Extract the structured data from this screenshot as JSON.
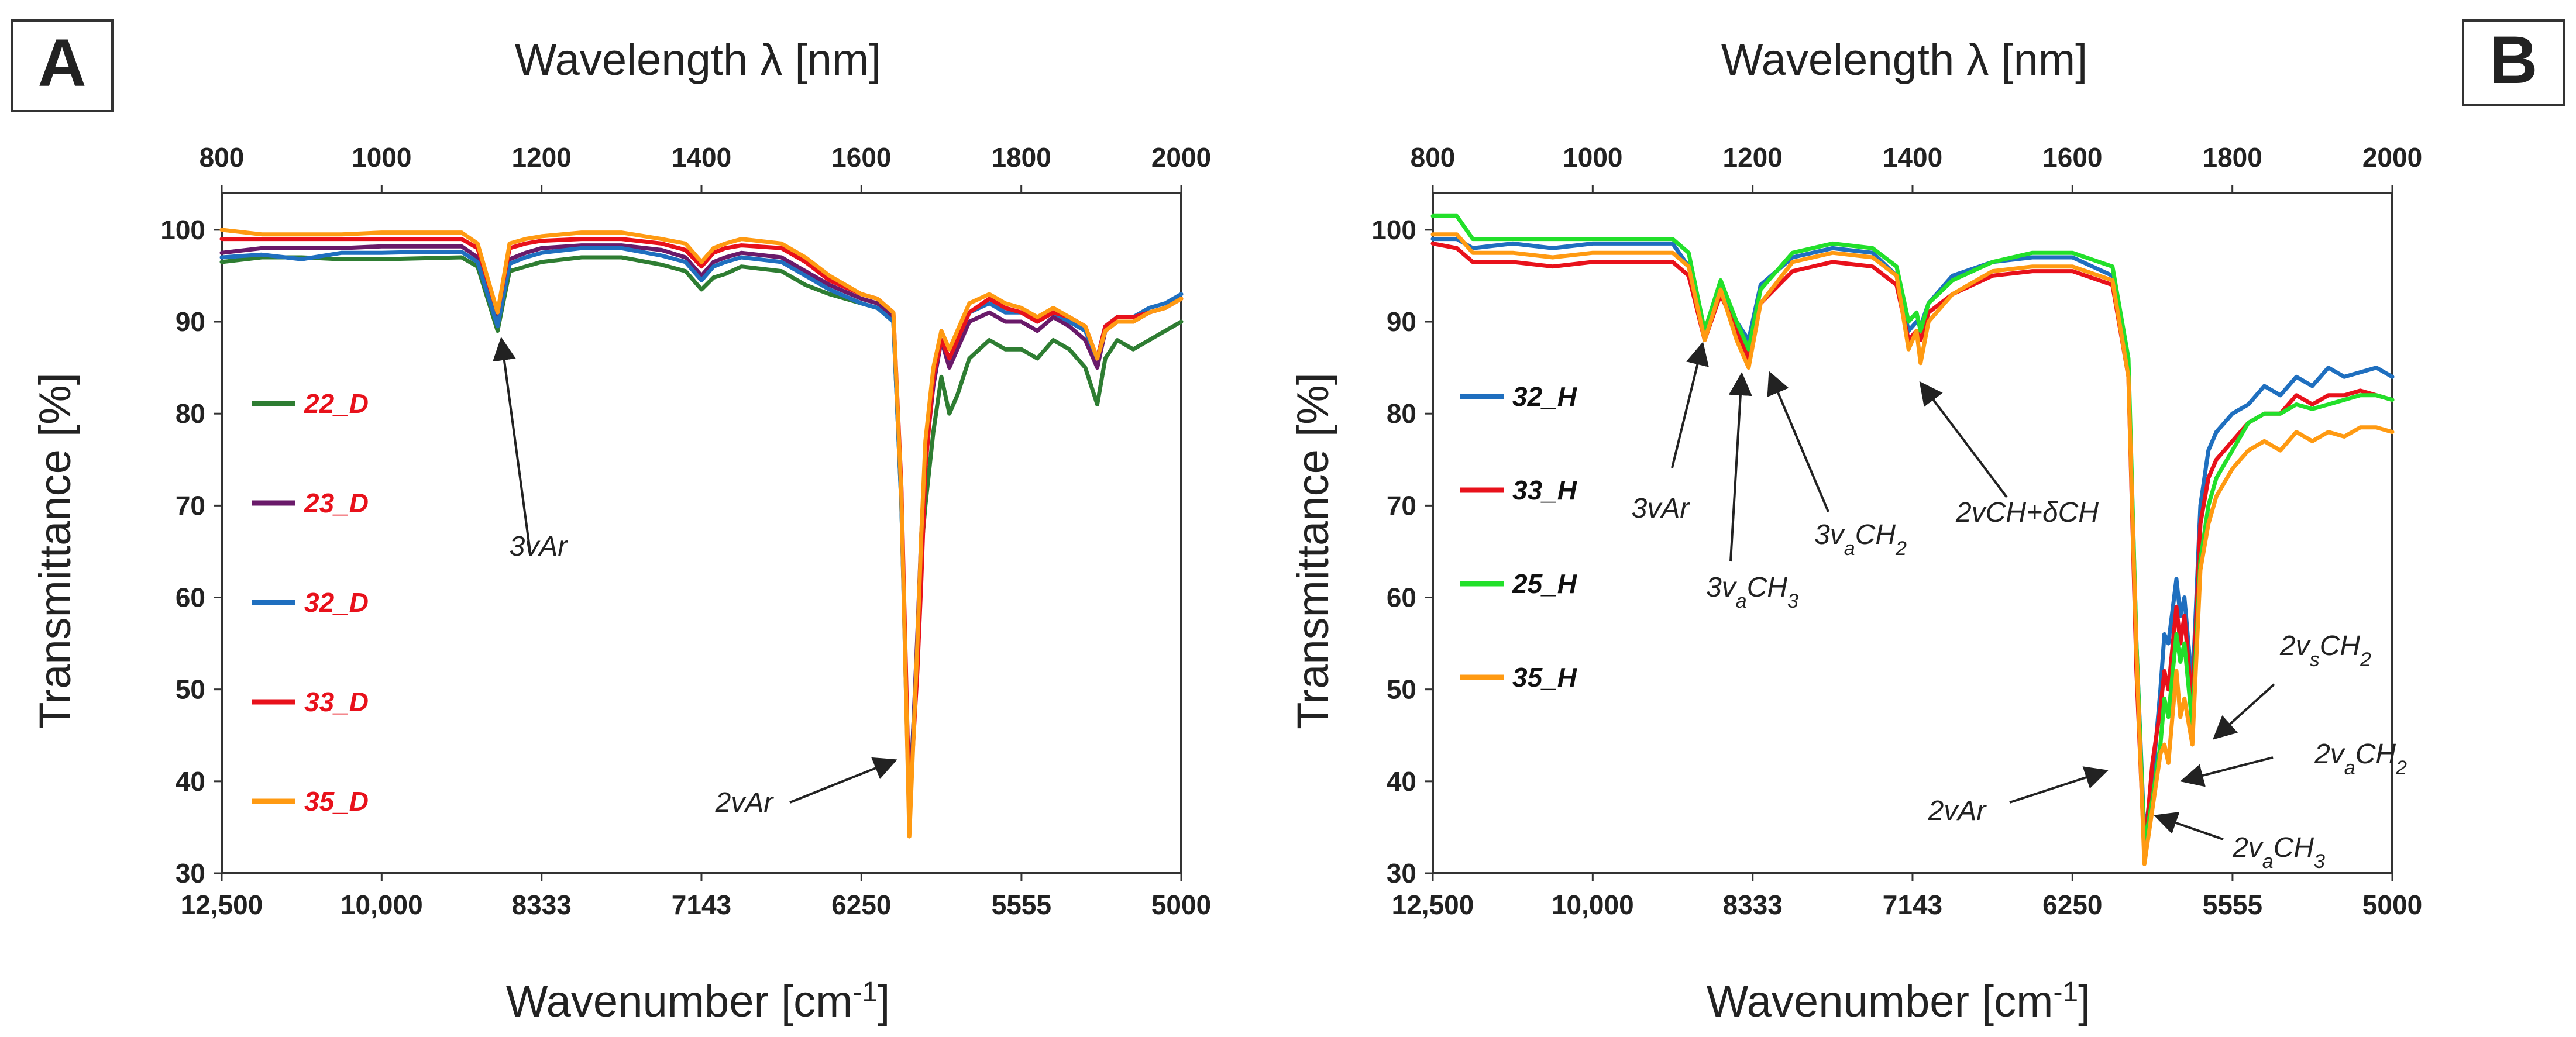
{
  "chart_data": [
    {
      "panel": "A",
      "type": "line",
      "title": "",
      "xlabel_top": "Wavelength λ [nm]",
      "xlabel": "Wavenumber [cm-1]",
      "ylabel": "Transmittance  [%]",
      "xlim_nm": [
        800,
        2000
      ],
      "ylim": [
        30,
        104
      ],
      "top_ticks": [
        "800",
        "1000",
        "1200",
        "1400",
        "1600",
        "1800",
        "2000"
      ],
      "top_tick_values": [
        800,
        1000,
        1200,
        1400,
        1600,
        1800,
        2000
      ],
      "bottom_ticks": [
        "12,500",
        "10,000",
        "8333",
        "7143",
        "6250",
        "5555",
        "5000"
      ],
      "bottom_tick_values": [
        12500,
        10000,
        8333,
        7143,
        6250,
        5555,
        5000
      ],
      "y_ticks": [
        "30",
        "40",
        "50",
        "60",
        "70",
        "80",
        "90",
        "100"
      ],
      "y_tick_values": [
        30,
        40,
        50,
        60,
        70,
        80,
        90,
        100
      ],
      "legend_color": "#e8111b",
      "series": [
        {
          "name": "22_D",
          "color": "#2e7d32",
          "x": [
            800,
            850,
            900,
            950,
            1000,
            1050,
            1100,
            1120,
            1145,
            1160,
            1180,
            1200,
            1250,
            1300,
            1350,
            1380,
            1400,
            1415,
            1430,
            1450,
            1500,
            1530,
            1560,
            1600,
            1620,
            1640,
            1650,
            1660,
            1670,
            1675,
            1680,
            1690,
            1700,
            1710,
            1720,
            1735,
            1760,
            1780,
            1800,
            1820,
            1840,
            1860,
            1880,
            1895,
            1905,
            1920,
            1940,
            1960,
            1980,
            2000
          ],
          "y": [
            96.5,
            97,
            97,
            96.8,
            96.8,
            96.9,
            97,
            96,
            89,
            95.5,
            96,
            96.5,
            97,
            97,
            96.2,
            95.5,
            93.5,
            94.8,
            95.2,
            96,
            95.5,
            94,
            93,
            92,
            91.5,
            90,
            70,
            37,
            55,
            65,
            70,
            78,
            84,
            80,
            82,
            86,
            88,
            87,
            87,
            86,
            88,
            87,
            85,
            81,
            86,
            88,
            87,
            88,
            89,
            90
          ]
        },
        {
          "name": "23_D",
          "color": "#6a1a6a",
          "x": [
            800,
            850,
            900,
            950,
            1000,
            1050,
            1100,
            1120,
            1145,
            1160,
            1180,
            1200,
            1250,
            1300,
            1350,
            1380,
            1400,
            1415,
            1430,
            1450,
            1500,
            1530,
            1560,
            1600,
            1620,
            1640,
            1650,
            1660,
            1670,
            1675,
            1680,
            1690,
            1700,
            1710,
            1720,
            1735,
            1760,
            1780,
            1800,
            1820,
            1840,
            1860,
            1880,
            1895,
            1905,
            1920,
            1940,
            1960,
            1980,
            2000
          ],
          "y": [
            97.5,
            98,
            98,
            98,
            98.2,
            98.2,
            98.2,
            97,
            90,
            96.8,
            97.5,
            98,
            98.3,
            98.3,
            97.8,
            97,
            95,
            96.5,
            97,
            97.5,
            97,
            95.5,
            94,
            92.5,
            92,
            90.5,
            71,
            36,
            56,
            67,
            75,
            83,
            88,
            85,
            87,
            90,
            91,
            90,
            90,
            89,
            90.5,
            89.5,
            88,
            85,
            89,
            90,
            90,
            91,
            91.5,
            92.5
          ]
        },
        {
          "name": "32_D",
          "color": "#1f6fbf",
          "x": [
            800,
            850,
            900,
            950,
            1000,
            1050,
            1100,
            1120,
            1145,
            1160,
            1180,
            1200,
            1250,
            1300,
            1350,
            1380,
            1400,
            1415,
            1430,
            1450,
            1500,
            1530,
            1560,
            1600,
            1620,
            1640,
            1650,
            1660,
            1670,
            1675,
            1680,
            1690,
            1700,
            1710,
            1720,
            1735,
            1760,
            1780,
            1800,
            1820,
            1840,
            1860,
            1880,
            1895,
            1905,
            1920,
            1940,
            1960,
            1980,
            2000
          ],
          "y": [
            97,
            97.3,
            96.8,
            97.5,
            97.5,
            97.6,
            97.6,
            96.5,
            89.5,
            96.3,
            97,
            97.5,
            98,
            98,
            97.2,
            96.5,
            94.5,
            96,
            96.5,
            97,
            96.5,
            95,
            93.5,
            92,
            91.5,
            90,
            70,
            35,
            55,
            66,
            76,
            84,
            88,
            86,
            88,
            91,
            92,
            91,
            91,
            90,
            91,
            90,
            89,
            86,
            89.5,
            90.5,
            90.5,
            91.5,
            92,
            93
          ]
        },
        {
          "name": "33_D",
          "color": "#e8111b",
          "x": [
            800,
            850,
            900,
            950,
            1000,
            1050,
            1100,
            1120,
            1145,
            1160,
            1180,
            1200,
            1250,
            1300,
            1350,
            1380,
            1400,
            1415,
            1430,
            1450,
            1500,
            1530,
            1560,
            1600,
            1620,
            1640,
            1650,
            1660,
            1670,
            1675,
            1680,
            1690,
            1700,
            1710,
            1720,
            1735,
            1760,
            1780,
            1800,
            1820,
            1840,
            1860,
            1880,
            1895,
            1905,
            1920,
            1940,
            1960,
            1980,
            2000
          ],
          "y": [
            99,
            99,
            99,
            99,
            99,
            99,
            99,
            98,
            91,
            98,
            98.5,
            98.8,
            99,
            99,
            98.5,
            97.8,
            96,
            97.5,
            98,
            98.3,
            98,
            96.5,
            94.5,
            93,
            92.5,
            91,
            72,
            37,
            52,
            62,
            74,
            84,
            88,
            86,
            88,
            91,
            92.5,
            91.5,
            91,
            90,
            91,
            90.5,
            89.5,
            86,
            89.5,
            90.5,
            90.5,
            91,
            91.5,
            92.5
          ]
        },
        {
          "name": "35_D",
          "color": "#ff9a12",
          "x": [
            800,
            850,
            900,
            950,
            1000,
            1050,
            1100,
            1120,
            1145,
            1160,
            1180,
            1200,
            1250,
            1300,
            1350,
            1380,
            1400,
            1415,
            1430,
            1450,
            1500,
            1530,
            1560,
            1600,
            1620,
            1640,
            1650,
            1660,
            1670,
            1675,
            1680,
            1690,
            1700,
            1710,
            1720,
            1735,
            1760,
            1780,
            1800,
            1820,
            1840,
            1860,
            1880,
            1895,
            1905,
            1920,
            1940,
            1960,
            1980,
            2000
          ],
          "y": [
            100,
            99.5,
            99.5,
            99.5,
            99.7,
            99.7,
            99.7,
            98.5,
            91,
            98.5,
            99,
            99.3,
            99.7,
            99.7,
            99,
            98.5,
            96.5,
            98,
            98.5,
            99,
            98.5,
            97,
            95,
            93,
            92.5,
            91,
            71,
            34,
            55,
            67,
            77,
            85,
            89,
            87,
            89,
            92,
            93,
            92,
            91.5,
            90.5,
            91.5,
            90.5,
            89.5,
            86,
            89,
            90,
            90,
            91,
            91.5,
            92.5
          ]
        }
      ],
      "annotations": [
        {
          "text": "3vAr"
        },
        {
          "text": "2vAr"
        }
      ]
    },
    {
      "panel": "B",
      "type": "line",
      "title": "",
      "xlabel_top": "Wavelength λ [nm]",
      "xlabel": "Wavenumber [cm-1]",
      "ylabel": "Transmittance  [%]",
      "xlim_nm": [
        800,
        2000
      ],
      "ylim": [
        30,
        104
      ],
      "top_ticks": [
        "800",
        "1000",
        "1200",
        "1400",
        "1600",
        "1800",
        "2000"
      ],
      "top_tick_values": [
        800,
        1000,
        1200,
        1400,
        1600,
        1800,
        2000
      ],
      "bottom_ticks": [
        "12,500",
        "10,000",
        "8333",
        "7143",
        "6250",
        "5555",
        "5000"
      ],
      "bottom_tick_values": [
        12500,
        10000,
        8333,
        7143,
        6250,
        5555,
        5000
      ],
      "y_ticks": [
        "30",
        "40",
        "50",
        "60",
        "70",
        "80",
        "90",
        "100"
      ],
      "y_tick_values": [
        30,
        40,
        50,
        60,
        70,
        80,
        90,
        100
      ],
      "legend_color": "#111111",
      "series": [
        {
          "name": "32_H",
          "color": "#1f6fbf",
          "x": [
            800,
            830,
            850,
            900,
            950,
            1000,
            1050,
            1100,
            1120,
            1140,
            1160,
            1180,
            1195,
            1210,
            1250,
            1300,
            1350,
            1380,
            1395,
            1405,
            1410,
            1420,
            1450,
            1500,
            1550,
            1600,
            1650,
            1670,
            1680,
            1690,
            1700,
            1710,
            1715,
            1720,
            1730,
            1735,
            1740,
            1750,
            1760,
            1770,
            1780,
            1800,
            1820,
            1840,
            1860,
            1880,
            1900,
            1920,
            1940,
            1960,
            1980,
            2000
          ],
          "y": [
            99,
            99,
            98,
            98.5,
            98,
            98.5,
            98.5,
            98.5,
            96,
            89,
            94,
            90,
            88,
            94,
            97,
            98,
            97.5,
            95,
            89,
            90,
            89.5,
            92,
            95,
            96.5,
            97,
            97,
            95,
            85,
            55,
            34,
            40,
            50,
            56,
            55,
            62,
            58,
            60,
            50,
            70,
            76,
            78,
            80,
            81,
            83,
            82,
            84,
            83,
            85,
            84,
            84.5,
            85,
            84
          ]
        },
        {
          "name": "33_H",
          "color": "#e8111b",
          "x": [
            800,
            830,
            850,
            900,
            950,
            1000,
            1050,
            1100,
            1120,
            1140,
            1160,
            1180,
            1195,
            1210,
            1250,
            1300,
            1350,
            1380,
            1395,
            1405,
            1410,
            1420,
            1450,
            1500,
            1550,
            1600,
            1650,
            1670,
            1680,
            1690,
            1700,
            1710,
            1715,
            1720,
            1730,
            1735,
            1740,
            1750,
            1760,
            1770,
            1780,
            1800,
            1820,
            1840,
            1860,
            1880,
            1900,
            1920,
            1940,
            1960,
            1980,
            2000
          ],
          "y": [
            98.5,
            98,
            96.5,
            96.5,
            96,
            96.5,
            96.5,
            96.5,
            95,
            88,
            93,
            89,
            86,
            92,
            95.5,
            96.5,
            96,
            94,
            88,
            89,
            88,
            91,
            93,
            95,
            95.5,
            95.5,
            94,
            84,
            52,
            32,
            42,
            48,
            52,
            50,
            59,
            55,
            58,
            48,
            68,
            73,
            75,
            77,
            79,
            80,
            80,
            82,
            81,
            82,
            82,
            82.5,
            82,
            81.5
          ]
        },
        {
          "name": "25_H",
          "color": "#22e02a",
          "x": [
            800,
            830,
            850,
            900,
            950,
            1000,
            1050,
            1100,
            1120,
            1140,
            1160,
            1180,
            1195,
            1210,
            1250,
            1300,
            1350,
            1380,
            1395,
            1405,
            1410,
            1420,
            1450,
            1500,
            1550,
            1600,
            1650,
            1670,
            1680,
            1690,
            1700,
            1710,
            1715,
            1720,
            1730,
            1735,
            1740,
            1750,
            1760,
            1770,
            1780,
            1800,
            1820,
            1840,
            1860,
            1880,
            1900,
            1920,
            1940,
            1960,
            1980,
            2000
          ],
          "y": [
            101.5,
            101.5,
            99,
            99,
            99,
            99,
            99,
            99,
            97.5,
            89,
            94.5,
            90,
            87,
            93.5,
            97.5,
            98.5,
            98,
            96,
            90,
            91,
            89,
            92,
            94.5,
            96.5,
            97.5,
            97.5,
            96,
            86,
            55,
            33,
            38,
            44,
            49,
            47,
            56,
            53,
            55,
            46,
            64,
            70,
            73,
            76,
            79,
            80,
            80,
            81,
            80.5,
            81,
            81.5,
            82,
            82,
            81.5
          ]
        },
        {
          "name": "35_H",
          "color": "#ff9a12",
          "x": [
            800,
            830,
            850,
            900,
            950,
            1000,
            1050,
            1100,
            1120,
            1140,
            1160,
            1180,
            1195,
            1210,
            1250,
            1300,
            1350,
            1380,
            1395,
            1405,
            1410,
            1420,
            1450,
            1500,
            1550,
            1600,
            1650,
            1670,
            1680,
            1690,
            1700,
            1710,
            1715,
            1720,
            1730,
            1735,
            1740,
            1750,
            1760,
            1770,
            1780,
            1800,
            1820,
            1840,
            1860,
            1880,
            1900,
            1920,
            1940,
            1960,
            1980,
            2000
          ],
          "y": [
            99.5,
            99.5,
            97.5,
            97.5,
            97,
            97.5,
            97.5,
            97.5,
            96,
            88,
            93.5,
            88,
            85,
            92,
            96.5,
            97.5,
            97,
            95,
            87,
            89,
            85.5,
            90,
            93,
            95.5,
            96,
            96,
            94.5,
            84,
            54,
            31,
            37,
            43,
            44,
            42,
            52,
            47,
            49,
            44,
            63,
            68,
            71,
            74,
            76,
            77,
            76,
            78,
            77,
            78,
            77.5,
            78.5,
            78.5,
            78
          ]
        }
      ],
      "annotations": [
        {
          "text": "3vAr"
        },
        {
          "text": "3vaCH3"
        },
        {
          "text": "3vaCH2"
        },
        {
          "text": "2vCH+δCH"
        },
        {
          "text": "2vAr"
        },
        {
          "text": "2vsCH2"
        },
        {
          "text": "2vaCH2"
        },
        {
          "text": "2vaCH3"
        }
      ]
    }
  ]
}
